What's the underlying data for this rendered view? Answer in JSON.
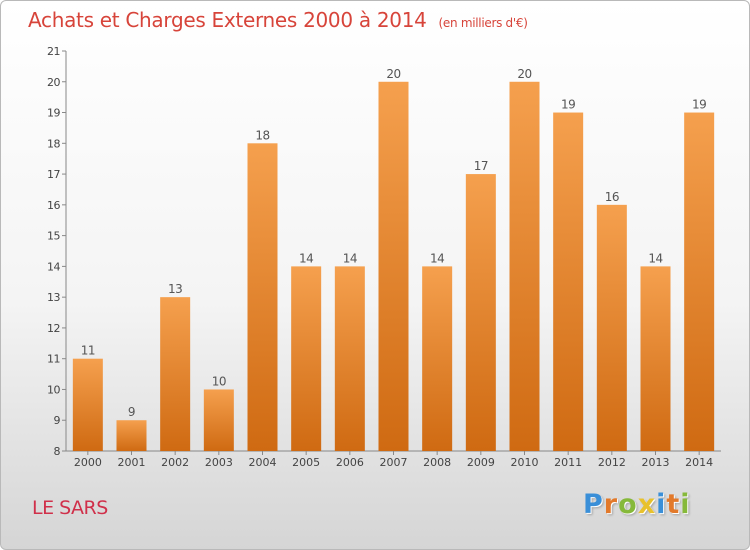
{
  "header": {
    "title": "Achats et Charges Externes 2000 à 2014",
    "subtitle": "(en milliers d'€)"
  },
  "footer": {
    "town": "LE SARS",
    "logo": {
      "letters": [
        {
          "char": "P",
          "color": "#3a8fd8"
        },
        {
          "char": "r",
          "color": "#e2792a"
        },
        {
          "char": "o",
          "color": "#86b93a"
        },
        {
          "char": "x",
          "color": "#e8c12c"
        },
        {
          "char": "i",
          "color": "#3a8fd8"
        },
        {
          "char": "t",
          "color": "#e2792a"
        },
        {
          "char": "i",
          "color": "#86b93a"
        }
      ]
    }
  },
  "chart_data": {
    "type": "bar",
    "title": "Achats et Charges Externes 2000 à 2014",
    "subtitle": "(en milliers d'€)",
    "categories": [
      "2000",
      "2001",
      "2002",
      "2003",
      "2004",
      "2005",
      "2006",
      "2007",
      "2008",
      "2009",
      "2010",
      "2011",
      "2012",
      "2013",
      "2014"
    ],
    "values": [
      11,
      9,
      13,
      10,
      18,
      14,
      14,
      20,
      14,
      17,
      20,
      19,
      16,
      14,
      19
    ],
    "ylim": [
      8,
      21
    ],
    "yticks": [
      8,
      9,
      10,
      11,
      12,
      13,
      14,
      15,
      16,
      17,
      18,
      19,
      20,
      21
    ],
    "grid": false,
    "bar_color_top": "#f5a04e",
    "bar_color_bottom": "#cf6a12"
  }
}
